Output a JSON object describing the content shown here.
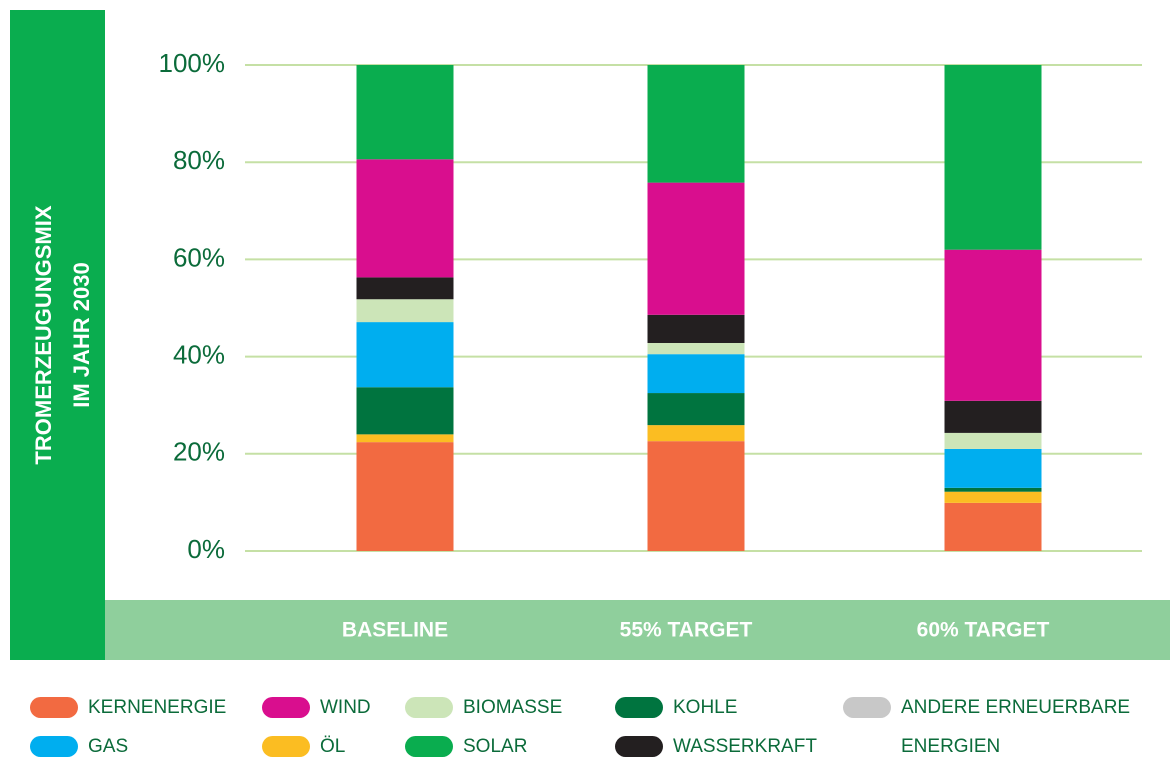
{
  "chart_data": {
    "type": "stacked_bar",
    "y_label": [
      "TROMERZEUGUNGSMIX",
      "IM JAHR 2030"
    ],
    "categories": [
      "BASELINE",
      "55% TARGET",
      "60% TARGET"
    ],
    "series": [
      {
        "name": "KERNENERGIE",
        "color": "#f26a41",
        "values": [
          22.4,
          22.6,
          9.9
        ]
      },
      {
        "name": "ÖL",
        "color": "#fbbd22",
        "values": [
          1.6,
          3.3,
          2.3
        ]
      },
      {
        "name": "KOHLE",
        "color": "#00743f",
        "values": [
          9.7,
          6.6,
          0.8
        ]
      },
      {
        "name": "GAS",
        "color": "#00aeef",
        "values": [
          13.4,
          8.0,
          8.0
        ]
      },
      {
        "name": "BIOMASSE",
        "color": "#cce5b8",
        "values": [
          4.7,
          2.3,
          3.3
        ]
      },
      {
        "name": "ANDERE ERNEUERBARE ENERGIEN",
        "color": "#c8c8c8",
        "values": [
          0,
          0,
          0
        ]
      },
      {
        "name": "WASSERKRAFT",
        "color": "#231f20",
        "values": [
          4.5,
          5.8,
          6.6
        ]
      },
      {
        "name": "WIND",
        "color": "#d90e8e",
        "values": [
          24.3,
          27.2,
          31.1
        ]
      },
      {
        "name": "SOLAR",
        "color": "#0aad4f",
        "values": [
          19.4,
          24.2,
          38.0
        ]
      }
    ],
    "ylim": [
      0,
      100
    ],
    "yticks": [
      {
        "value": 0,
        "label": "0%"
      },
      {
        "value": 20,
        "label": "20%"
      },
      {
        "value": 40,
        "label": "40%"
      },
      {
        "value": 60,
        "label": "60%"
      },
      {
        "value": 80,
        "label": "80%"
      },
      {
        "value": 100,
        "label": "100%"
      }
    ],
    "grid": true
  }
}
